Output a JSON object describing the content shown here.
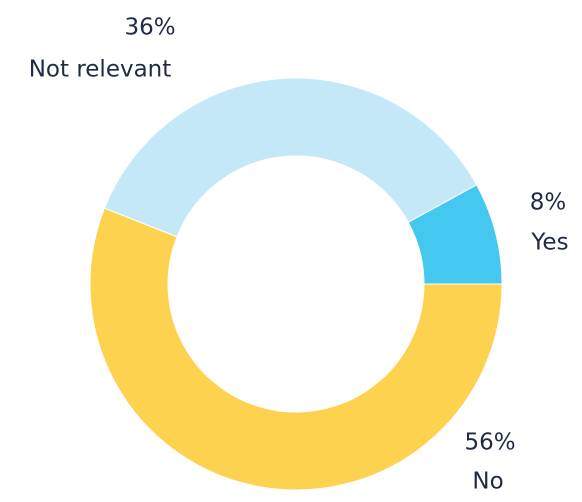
{
  "chart_data": {
    "type": "donut",
    "categories": [
      "Yes",
      "Not relevant",
      "No"
    ],
    "values": [
      8,
      36,
      56
    ],
    "value_labels": [
      "8%",
      "36%",
      "56%"
    ],
    "colors": [
      "#45c8f0",
      "#c5e8f8",
      "#fdd24e"
    ]
  }
}
